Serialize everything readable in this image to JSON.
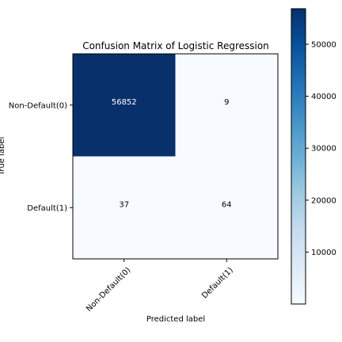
{
  "chart_data": {
    "type": "heatmap",
    "title": "Confusion Matrix of Logistic Regression",
    "xlabel": "Predicted label",
    "ylabel": "True label",
    "x_categories": [
      "Non-Default(0)",
      "Default(1)"
    ],
    "y_categories": [
      "Non-Default(0)",
      "Default(1)"
    ],
    "values": [
      [
        56852,
        9
      ],
      [
        37,
        64
      ]
    ],
    "cell_labels": [
      [
        "56852",
        "9"
      ],
      [
        "37",
        "64"
      ]
    ],
    "colormap": "Blues",
    "colorbar": {
      "ticks": [
        10000,
        20000,
        30000,
        40000,
        50000
      ],
      "tick_labels": [
        "10000",
        "20000",
        "30000",
        "40000",
        "50000"
      ],
      "range": [
        9,
        56852
      ]
    },
    "colors": {
      "low": "#f7fbff",
      "high": "#08306b",
      "text_dark": "#000000",
      "text_light": "#ffffff"
    }
  }
}
